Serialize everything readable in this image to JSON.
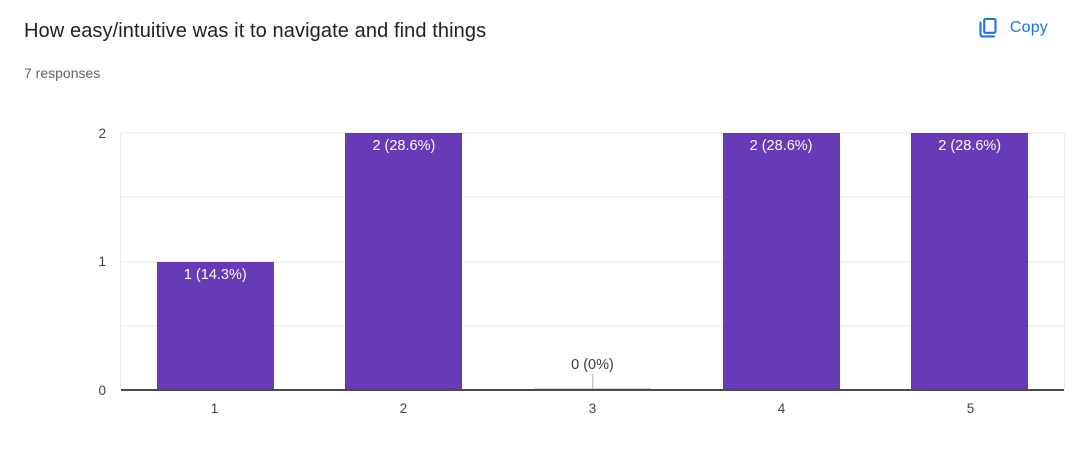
{
  "header": {
    "title": "How easy/intuitive was it to navigate and find things",
    "subtitle": "7 responses",
    "copy_label": "Copy"
  },
  "colors": {
    "accent": "#1a73e8",
    "bar": "#673ab7",
    "grid": "#e8e8e8",
    "baseline": "#4a4a4a",
    "axis_text": "#444444",
    "title_text": "#212121",
    "subtitle_text": "#5f6368"
  },
  "chart_data": {
    "type": "bar",
    "title": "How easy/intuitive was it to navigate and find things",
    "categories": [
      "1",
      "2",
      "3",
      "4",
      "5"
    ],
    "values": [
      1,
      2,
      0,
      2,
      2
    ],
    "labels": [
      "1 (14.3%)",
      "2 (28.6%)",
      "0 (0%)",
      "2 (28.6%)",
      "2 (28.6%)"
    ],
    "xlabel": "",
    "ylabel": "",
    "ylim": [
      0,
      2
    ],
    "yticks": [
      0,
      1,
      2
    ],
    "gridlines": [
      0.5,
      1,
      1.5,
      2
    ],
    "legend": "none",
    "grid": "horizontal",
    "bar_color": "#673ab7"
  }
}
